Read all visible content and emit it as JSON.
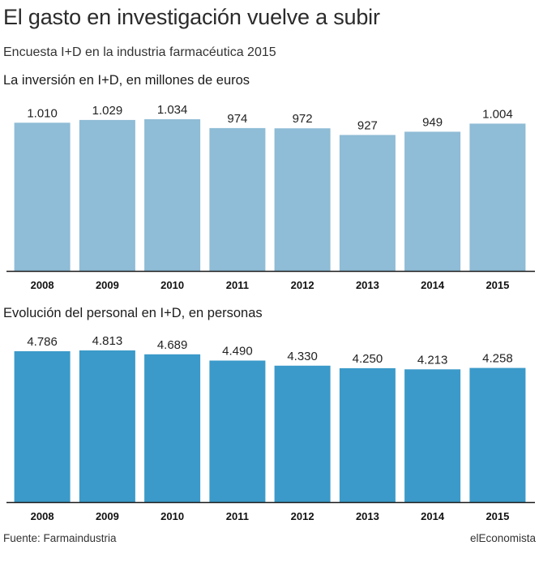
{
  "header": {
    "title": "El gasto en investigación vuelve a subir",
    "subtitle": "Encuesta I+D en la industria farmacéutica 2015"
  },
  "chart_data": [
    {
      "type": "bar",
      "title": "La inversión en I+D, en millones de euros",
      "categories": [
        "2008",
        "2009",
        "2010",
        "2011",
        "2012",
        "2013",
        "2014",
        "2015"
      ],
      "values": [
        1010,
        1029,
        1034,
        974,
        972,
        927,
        949,
        1004
      ],
      "value_labels": [
        "1.010",
        "1.029",
        "1.034",
        "974",
        "972",
        "927",
        "949",
        "1.004"
      ],
      "ylim": [
        0,
        1034
      ],
      "bar_color": "#8fbcd6",
      "grid": false
    },
    {
      "type": "bar",
      "title": "Evolución del personal en I+D, en personas",
      "categories": [
        "2008",
        "2009",
        "2010",
        "2011",
        "2012",
        "2013",
        "2014",
        "2015"
      ],
      "values": [
        4786,
        4813,
        4689,
        4490,
        4330,
        4250,
        4213,
        4258
      ],
      "value_labels": [
        "4.786",
        "4.813",
        "4.689",
        "4.490",
        "4.330",
        "4.250",
        "4.213",
        "4.258"
      ],
      "ylim": [
        0,
        4813
      ],
      "bar_color": "#3b9ac9",
      "grid": false
    }
  ],
  "footer": {
    "source": "Fuente: Farmaindustria",
    "brand": "elEconomista"
  }
}
